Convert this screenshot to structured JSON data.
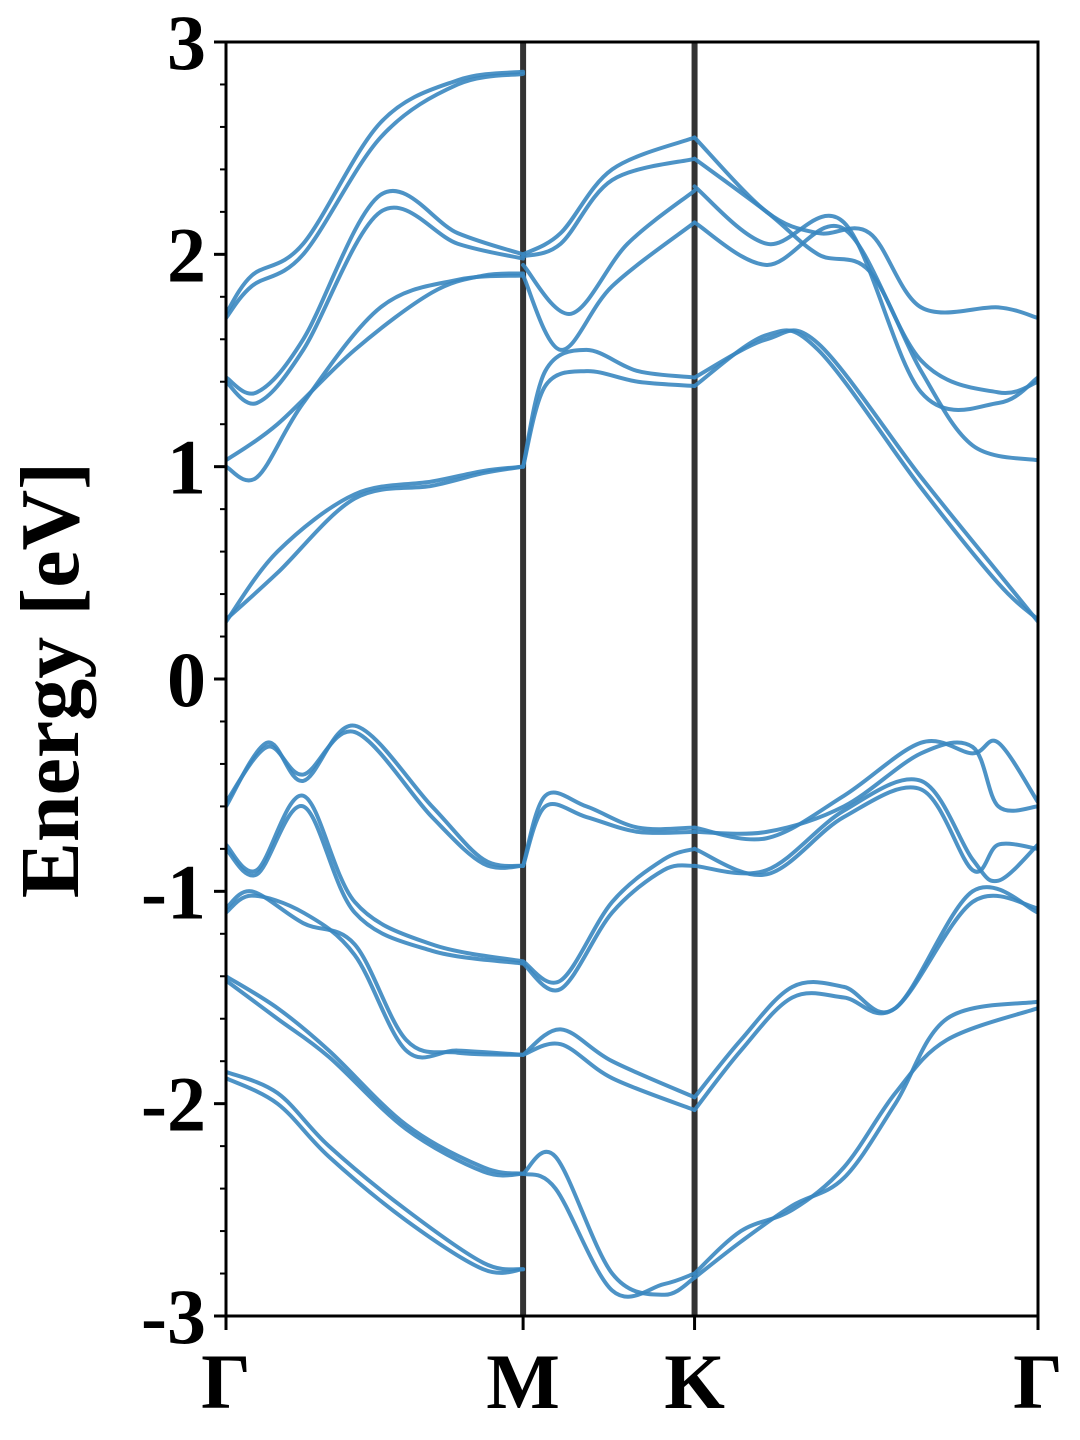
{
  "chart_data": {
    "type": "line",
    "title": "",
    "xlabel": "",
    "ylabel": "Energy [eV]",
    "ylim": [
      -3,
      3
    ],
    "yticks": [
      "-3",
      "-2",
      "-1",
      "0",
      "1",
      "2",
      "3"
    ],
    "x_points": [
      {
        "label": "Γ",
        "x": 0.0
      },
      {
        "label": "M",
        "x": 0.577
      },
      {
        "label": "K",
        "x": 0.91
      },
      {
        "label": "Γ",
        "x": 1.577
      }
    ],
    "grid": false,
    "line_color": "#3a87c0",
    "vline_color": "#333333",
    "series": [
      {
        "x": [
          0,
          0.1,
          0.25,
          0.4,
          0.5,
          0.577
        ],
        "values": [
          0.27,
          0.6,
          0.87,
          0.93,
          0.98,
          1.0
        ]
      },
      {
        "x": [
          0,
          0.1,
          0.25,
          0.4,
          0.5,
          0.577
        ],
        "values": [
          0.28,
          0.5,
          0.85,
          0.91,
          0.97,
          1.0
        ]
      },
      {
        "x": [
          0.577,
          0.62,
          0.7,
          0.8,
          0.91
        ],
        "values": [
          1.0,
          1.45,
          1.55,
          1.45,
          1.42
        ]
      },
      {
        "x": [
          0.577,
          0.62,
          0.7,
          0.8,
          0.91
        ],
        "values": [
          1.0,
          1.38,
          1.45,
          1.4,
          1.38
        ]
      },
      {
        "x": [
          0.91,
          1.05,
          1.15,
          1.35,
          1.5,
          1.577
        ],
        "values": [
          1.42,
          1.6,
          1.58,
          0.95,
          0.5,
          0.27
        ]
      },
      {
        "x": [
          0.91,
          1.05,
          1.15,
          1.35,
          1.5,
          1.577
        ],
        "values": [
          1.38,
          1.62,
          1.55,
          0.9,
          0.45,
          0.28
        ]
      },
      {
        "x": [
          0,
          0.06,
          0.15,
          0.3,
          0.45,
          0.577
        ],
        "values": [
          1.0,
          0.95,
          1.3,
          1.75,
          1.88,
          1.9
        ]
      },
      {
        "x": [
          0,
          0.1,
          0.25,
          0.4,
          0.5,
          0.577
        ],
        "values": [
          1.03,
          1.2,
          1.55,
          1.82,
          1.9,
          1.91
        ]
      },
      {
        "x": [
          0,
          0.06,
          0.15,
          0.3,
          0.45,
          0.577
        ],
        "values": [
          1.4,
          1.3,
          1.55,
          2.2,
          2.05,
          1.98
        ]
      },
      {
        "x": [
          0,
          0.06,
          0.15,
          0.3,
          0.45,
          0.577
        ],
        "values": [
          1.42,
          1.35,
          1.6,
          2.28,
          2.1,
          2.0
        ]
      },
      {
        "x": [
          0,
          0.05,
          0.15,
          0.3,
          0.45,
          0.577
        ],
        "values": [
          1.7,
          1.85,
          2.0,
          2.55,
          2.8,
          2.85
        ]
      },
      {
        "x": [
          0,
          0.05,
          0.15,
          0.3,
          0.45,
          0.577
        ],
        "values": [
          1.72,
          1.9,
          2.05,
          2.62,
          2.82,
          2.86
        ]
      },
      {
        "x": [
          0.577,
          0.65,
          0.75,
          0.91
        ],
        "values": [
          1.9,
          1.55,
          1.85,
          2.15
        ]
      },
      {
        "x": [
          0.577,
          0.67,
          0.78,
          0.91
        ],
        "values": [
          1.95,
          1.72,
          2.05,
          2.3
        ]
      },
      {
        "x": [
          0.577,
          0.65,
          0.75,
          0.91
        ],
        "values": [
          1.99,
          2.05,
          2.35,
          2.45
        ]
      },
      {
        "x": [
          0.577,
          0.65,
          0.75,
          0.91
        ],
        "values": [
          2.0,
          2.1,
          2.4,
          2.55
        ]
      },
      {
        "x": [
          0.91,
          1.05,
          1.2,
          1.35,
          1.5,
          1.577
        ],
        "values": [
          2.15,
          1.95,
          2.12,
          1.5,
          1.35,
          1.4
        ]
      },
      {
        "x": [
          0.91,
          1.05,
          1.2,
          1.35,
          1.5,
          1.577
        ],
        "values": [
          2.32,
          2.05,
          2.15,
          1.35,
          1.3,
          1.42
        ]
      },
      {
        "x": [
          0.91,
          1.05,
          1.15,
          1.25,
          1.35,
          1.45,
          1.577
        ],
        "values": [
          2.45,
          2.2,
          2.0,
          1.92,
          1.45,
          1.1,
          1.03
        ]
      },
      {
        "x": [
          0.91,
          1.05,
          1.15,
          1.25,
          1.35,
          1.5,
          1.577
        ],
        "values": [
          2.55,
          2.2,
          2.1,
          2.1,
          1.75,
          1.75,
          1.7
        ]
      },
      {
        "x": [
          0,
          0.08,
          0.15,
          0.25,
          0.4,
          0.5,
          0.577
        ],
        "values": [
          -0.6,
          -0.3,
          -0.48,
          -0.22,
          -0.6,
          -0.85,
          -0.88
        ]
      },
      {
        "x": [
          0,
          0.08,
          0.15,
          0.25,
          0.4,
          0.5,
          0.577
        ],
        "values": [
          -0.58,
          -0.32,
          -0.45,
          -0.25,
          -0.65,
          -0.87,
          -0.88
        ]
      },
      {
        "x": [
          0,
          0.06,
          0.15,
          0.25,
          0.4,
          0.577
        ],
        "values": [
          -0.78,
          -0.9,
          -0.55,
          -1.05,
          -1.25,
          -1.33
        ]
      },
      {
        "x": [
          0,
          0.06,
          0.15,
          0.25,
          0.4,
          0.577
        ],
        "values": [
          -0.8,
          -0.92,
          -0.6,
          -1.1,
          -1.28,
          -1.34
        ]
      },
      {
        "x": [
          0,
          0.05,
          0.15,
          0.25,
          0.35,
          0.45,
          0.577
        ],
        "values": [
          -1.1,
          -1.02,
          -1.1,
          -1.3,
          -1.75,
          -1.75,
          -1.77
        ]
      },
      {
        "x": [
          0,
          0.05,
          0.15,
          0.25,
          0.35,
          0.45,
          0.577
        ],
        "values": [
          -1.08,
          -1.0,
          -1.15,
          -1.25,
          -1.7,
          -1.76,
          -1.77
        ]
      },
      {
        "x": [
          0.577,
          0.62,
          0.7,
          0.8,
          0.91
        ],
        "values": [
          -0.88,
          -0.55,
          -0.6,
          -0.7,
          -0.7
        ]
      },
      {
        "x": [
          0.577,
          0.62,
          0.7,
          0.8,
          0.91
        ],
        "values": [
          -0.88,
          -0.6,
          -0.65,
          -0.72,
          -0.72
        ]
      },
      {
        "x": [
          0.577,
          0.65,
          0.75,
          0.85,
          0.91
        ],
        "values": [
          -1.33,
          -1.42,
          -1.05,
          -0.85,
          -0.8
        ]
      },
      {
        "x": [
          0.577,
          0.65,
          0.75,
          0.85,
          0.91
        ],
        "values": [
          -1.34,
          -1.46,
          -1.1,
          -0.9,
          -0.88
        ]
      },
      {
        "x": [
          0.577,
          0.65,
          0.75,
          0.91
        ],
        "values": [
          -1.77,
          -1.65,
          -1.8,
          -1.97
        ]
      },
      {
        "x": [
          0.577,
          0.65,
          0.75,
          0.91
        ],
        "values": [
          -1.77,
          -1.72,
          -1.88,
          -2.03
        ]
      },
      {
        "x": [
          0.91,
          1.05,
          1.2,
          1.35,
          1.45,
          1.5,
          1.577
        ],
        "values": [
          -0.7,
          -0.75,
          -0.55,
          -0.3,
          -0.35,
          -0.3,
          -0.58
        ]
      },
      {
        "x": [
          0.91,
          1.05,
          1.2,
          1.35,
          1.45,
          1.5,
          1.577
        ],
        "values": [
          -0.72,
          -0.72,
          -0.6,
          -0.35,
          -0.32,
          -0.6,
          -0.6
        ]
      },
      {
        "x": [
          0.91,
          1.05,
          1.2,
          1.35,
          1.45,
          1.5,
          1.577
        ],
        "values": [
          -0.8,
          -0.92,
          -0.65,
          -0.52,
          -0.9,
          -0.78,
          -0.8
        ]
      },
      {
        "x": [
          0.91,
          1.05,
          1.2,
          1.35,
          1.45,
          1.5,
          1.577
        ],
        "values": [
          -0.88,
          -0.9,
          -0.62,
          -0.48,
          -0.85,
          -0.95,
          -0.78
        ]
      },
      {
        "x": [
          0.91,
          1.0,
          1.1,
          1.2,
          1.3,
          1.45,
          1.577
        ],
        "values": [
          -1.97,
          -1.7,
          -1.45,
          -1.45,
          -1.55,
          -1.0,
          -1.1
        ]
      },
      {
        "x": [
          0.91,
          1.0,
          1.1,
          1.2,
          1.3,
          1.45,
          1.577
        ],
        "values": [
          -2.03,
          -1.75,
          -1.5,
          -1.5,
          -1.55,
          -1.05,
          -1.08
        ]
      },
      {
        "x": [
          0,
          0.1,
          0.2,
          0.35,
          0.5,
          0.577
        ],
        "values": [
          -1.4,
          -1.55,
          -1.75,
          -2.1,
          -2.3,
          -2.33
        ]
      },
      {
        "x": [
          0,
          0.1,
          0.2,
          0.35,
          0.5,
          0.577
        ],
        "values": [
          -1.42,
          -1.6,
          -1.78,
          -2.12,
          -2.32,
          -2.33
        ]
      },
      {
        "x": [
          0,
          0.1,
          0.2,
          0.35,
          0.5,
          0.577
        ],
        "values": [
          -1.85,
          -1.95,
          -2.2,
          -2.5,
          -2.75,
          -2.78
        ]
      },
      {
        "x": [
          0,
          0.1,
          0.2,
          0.35,
          0.5,
          0.577
        ],
        "values": [
          -1.88,
          -2.0,
          -2.25,
          -2.55,
          -2.78,
          -2.78
        ]
      },
      {
        "x": [
          0.577,
          0.64,
          0.75,
          0.85,
          0.91
        ],
        "values": [
          -2.33,
          -2.25,
          -2.8,
          -2.9,
          -2.82
        ]
      },
      {
        "x": [
          0.577,
          0.64,
          0.75,
          0.85,
          0.91
        ],
        "values": [
          -2.33,
          -2.4,
          -2.88,
          -2.85,
          -2.8
        ]
      },
      {
        "x": [
          0.91,
          1.0,
          1.1,
          1.2,
          1.3,
          1.4,
          1.577
        ],
        "values": [
          -2.8,
          -2.6,
          -2.5,
          -2.3,
          -1.95,
          -1.7,
          -1.55
        ]
      },
      {
        "x": [
          0.91,
          1.0,
          1.1,
          1.2,
          1.3,
          1.4,
          1.577
        ],
        "values": [
          -2.82,
          -2.65,
          -2.48,
          -2.35,
          -2.0,
          -1.6,
          -1.52
        ]
      }
    ]
  }
}
